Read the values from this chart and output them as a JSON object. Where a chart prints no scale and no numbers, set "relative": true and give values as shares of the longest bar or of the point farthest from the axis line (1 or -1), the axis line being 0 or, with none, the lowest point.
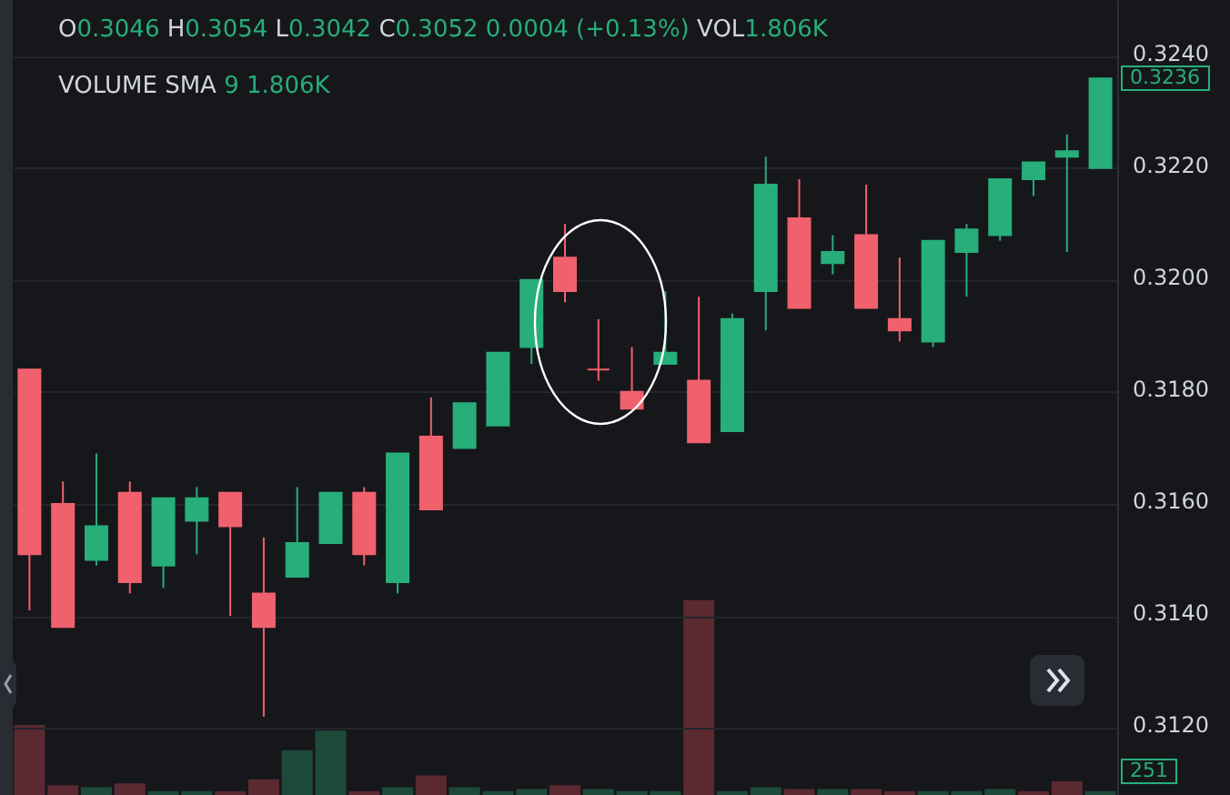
{
  "chart_data": [
    {
      "type": "candlestick",
      "title": "O0.3046 H0.3054 L0.3042 C0.3052 0.0004 (+0.13%) VOL1.806K",
      "subtitle": "VOLUME SMA 9 1.806K",
      "categories": [
        null,
        null,
        null,
        null,
        null,
        null,
        null,
        null,
        null,
        null,
        null,
        null,
        null,
        null,
        null,
        null,
        null,
        null,
        null,
        null,
        null,
        null,
        null,
        null,
        null,
        null,
        null,
        null,
        null,
        null,
        null,
        null,
        null
      ],
      "ohlc": [
        [
          0.3184,
          0.3184,
          0.3141,
          0.3151
        ],
        [
          0.316,
          0.3164,
          0.3138,
          0.3138
        ],
        [
          0.315,
          0.3169,
          0.3149,
          0.3156
        ],
        [
          0.3162,
          0.3164,
          0.3144,
          0.3146
        ],
        [
          0.3149,
          0.3161,
          0.3145,
          0.3161
        ],
        [
          0.3157,
          0.3163,
          0.3151,
          0.3161
        ],
        [
          0.3162,
          0.3162,
          0.314,
          0.3156
        ],
        [
          0.3144,
          0.3154,
          0.3122,
          0.3138
        ],
        [
          0.3147,
          0.3163,
          0.3147,
          0.3153
        ],
        [
          0.3153,
          0.3162,
          0.3153,
          0.3162
        ],
        [
          0.3162,
          0.3163,
          0.3149,
          0.3151
        ],
        [
          0.3146,
          0.3169,
          0.3144,
          0.3169
        ],
        [
          0.3172,
          0.3179,
          0.3159,
          0.3159
        ],
        [
          0.317,
          0.3178,
          0.317,
          0.3178
        ],
        [
          0.3174,
          0.3187,
          0.3174,
          0.3187
        ],
        [
          0.3188,
          0.32,
          0.3185,
          0.32
        ],
        [
          0.3204,
          0.321,
          0.3196,
          0.3198
        ],
        [
          0.3184,
          0.3193,
          0.3182,
          0.3184
        ],
        [
          0.318,
          0.3188,
          0.3177,
          0.3177
        ],
        [
          0.3185,
          0.3198,
          0.3185,
          0.3187
        ],
        [
          0.3182,
          0.3197,
          0.3171,
          0.3171
        ],
        [
          0.3173,
          0.3194,
          0.3173,
          0.3193
        ],
        [
          0.3198,
          0.3222,
          0.3191,
          0.3217
        ],
        [
          0.3211,
          0.3218,
          0.3195,
          0.3195
        ],
        [
          0.3203,
          0.3208,
          0.3201,
          0.3205
        ],
        [
          0.3208,
          0.3217,
          0.3195,
          0.3195
        ],
        [
          0.3193,
          0.3204,
          0.3189,
          0.3191
        ],
        [
          0.3189,
          0.3207,
          0.3188,
          0.3207
        ],
        [
          0.3205,
          0.321,
          0.3197,
          0.3209
        ],
        [
          0.3208,
          0.3218,
          0.3207,
          0.3218
        ],
        [
          0.3218,
          0.3221,
          0.3215,
          0.3221
        ],
        [
          0.3222,
          0.3226,
          0.3205,
          0.3223
        ],
        [
          0.322,
          0.3236,
          0.322,
          0.3236
        ]
      ],
      "colors": [
        "#f0616d",
        "#f0616d",
        "#27ae7a",
        "#f0616d",
        "#27ae7a",
        "#27ae7a",
        "#f0616d",
        "#f0616d",
        "#27ae7a",
        "#27ae7a",
        "#f0616d",
        "#27ae7a",
        "#f0616d",
        "#27ae7a",
        "#27ae7a",
        "#27ae7a",
        "#f0616d",
        "#f0616d",
        "#f0616d",
        "#27ae7a",
        "#f0616d",
        "#27ae7a",
        "#27ae7a",
        "#f0616d",
        "#27ae7a",
        "#f0616d",
        "#f0616d",
        "#27ae7a",
        "#27ae7a",
        "#27ae7a",
        "#27ae7a",
        "#27ae7a",
        "#27ae7a"
      ],
      "ylim": [
        0.3108,
        0.325
      ],
      "yticks": [
        {
          "value": 0.312,
          "label": "0.3120"
        },
        {
          "value": 0.314,
          "label": "0.3140"
        },
        {
          "value": 0.316,
          "label": "0.3160"
        },
        {
          "value": 0.318,
          "label": "0.3180"
        },
        {
          "value": 0.32,
          "label": "0.3200"
        },
        {
          "value": 0.322,
          "label": "0.3220"
        },
        {
          "value": 0.324,
          "label": "0.3240"
        }
      ],
      "grid": "y",
      "annotations": [
        "0.3236"
      ]
    },
    {
      "type": "bar",
      "relative": true,
      "categories": [
        null,
        null,
        null,
        null,
        null,
        null,
        null,
        null,
        null,
        null,
        null,
        null,
        null,
        null,
        null,
        null,
        null,
        null,
        null,
        null,
        null,
        null,
        null,
        null,
        null,
        null,
        null,
        null,
        null,
        null,
        null,
        null,
        null
      ],
      "values": [
        0.36,
        0.05,
        0.04,
        0.06,
        0.02,
        0.02,
        0.02,
        0.08,
        0.23,
        0.33,
        0.02,
        0.04,
        0.1,
        0.04,
        0.02,
        0.03,
        0.05,
        0.03,
        0.02,
        0.02,
        1,
        0.02,
        0.04,
        0.03,
        0.03,
        0.03,
        0.02,
        0.02,
        0.02,
        0.03,
        0.02,
        0.07,
        0.02
      ],
      "colors": [
        "#5a2a30",
        "#5a2a30",
        "#1e4a3a",
        "#5a2a30",
        "#1e4a3a",
        "#1e4a3a",
        "#5a2a30",
        "#5a2a30",
        "#1e4a3a",
        "#1e4a3a",
        "#5a2a30",
        "#1e4a3a",
        "#5a2a30",
        "#1e4a3a",
        "#1e4a3a",
        "#1e4a3a",
        "#5a2a30",
        "#1e4a3a",
        "#1e4a3a",
        "#1e4a3a",
        "#5a2a30",
        "#1e4a3a",
        "#1e4a3a",
        "#5a2a30",
        "#1e4a3a",
        "#5a2a30",
        "#5a2a30",
        "#1e4a3a",
        "#1e4a3a",
        "#1e4a3a",
        "#5a2a30",
        "#5a2a30",
        "#1e4a3a"
      ],
      "annotations": [
        "251"
      ]
    }
  ]
}
